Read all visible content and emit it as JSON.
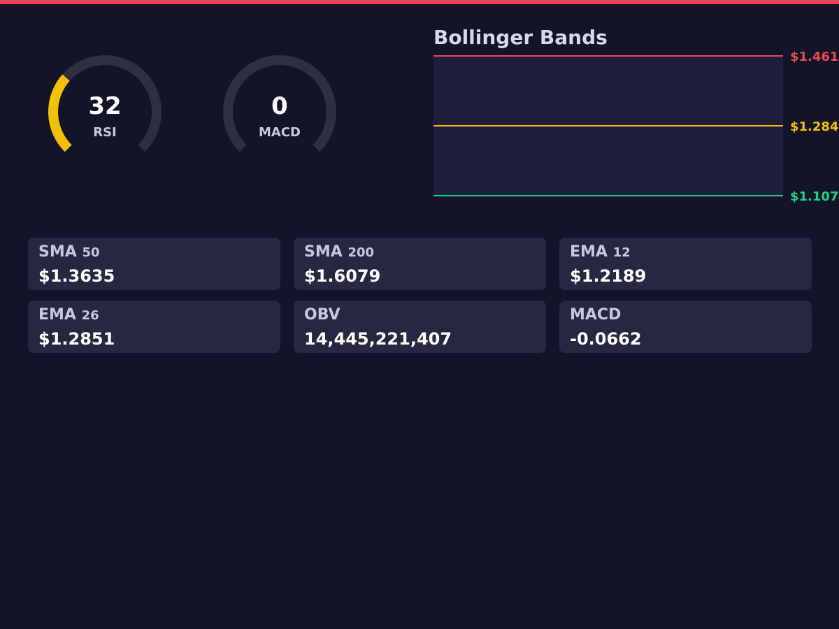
{
  "gauges": [
    {
      "value": 32,
      "label": "RSI",
      "range": [
        0,
        100
      ],
      "color": "#f5c000"
    },
    {
      "value": 0,
      "label": "MACD",
      "range": [
        0,
        100
      ],
      "color": "#f5c000"
    }
  ],
  "bollinger": {
    "title": "Bollinger Bands",
    "bands": [
      {
        "value": 1.461,
        "label": "$1.461",
        "color": "#e84a4f"
      },
      {
        "value": 1.284,
        "label": "$1.284",
        "color": "#f5c000"
      },
      {
        "value": 1.107,
        "label": "$1.107",
        "color": "#19d27f"
      }
    ]
  },
  "cards": [
    {
      "label": "SMA",
      "period": "50",
      "value": "$1.3635"
    },
    {
      "label": "SMA",
      "period": "200",
      "value": "$1.6079"
    },
    {
      "label": "EMA",
      "period": "12",
      "value": "$1.2189"
    },
    {
      "label": "EMA",
      "period": "26",
      "value": "$1.2851"
    },
    {
      "label": "OBV",
      "value": "14,445,221,407"
    },
    {
      "label": "MACD",
      "value": "-0.0662"
    }
  ]
}
